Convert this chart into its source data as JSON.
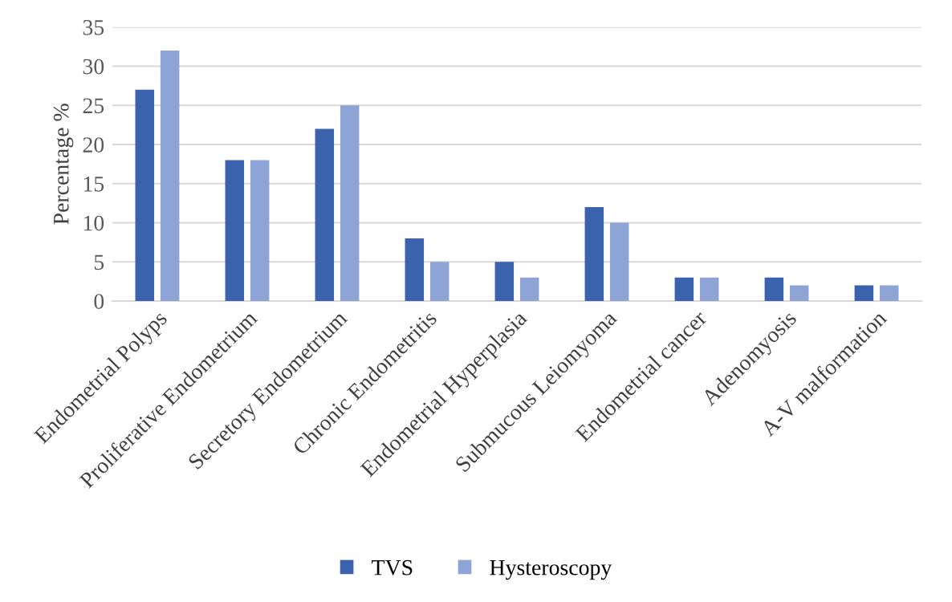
{
  "chart_data": {
    "type": "bar",
    "ylabel": "Percentage %",
    "categories": [
      "Endometrial Polyps",
      "Proliferative Endometrium",
      "Secretory Endometrium",
      "Chronic Endometritis",
      "Endometrial Hyperplasia",
      "Submucous Leiomyoma",
      "Endometrial cancer",
      "Adenomyosis",
      "A-V malformation"
    ],
    "series": [
      {
        "name": "TVS",
        "color": "#3a62ad",
        "values": [
          27,
          18,
          22,
          8,
          5,
          12,
          3,
          3,
          2
        ]
      },
      {
        "name": "Hysteroscopy",
        "color": "#8fa4d6",
        "values": [
          32,
          18,
          25,
          5,
          3,
          10,
          3,
          2,
          2
        ]
      }
    ],
    "ylim": [
      0,
      35
    ],
    "yticks": [
      0,
      5,
      10,
      15,
      20,
      25,
      30,
      35
    ],
    "grid": "y",
    "legend": "bottom"
  }
}
